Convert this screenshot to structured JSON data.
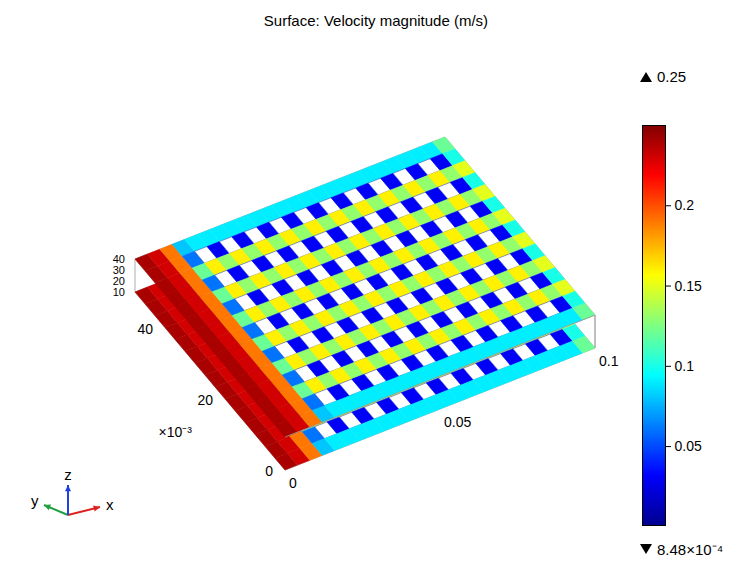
{
  "chart_data": {
    "type": "surface",
    "title": "Surface: Velocity magnitude (m/s)",
    "xlim": [
      0,
      0.1
    ],
    "xticks": [
      0,
      0.05,
      0.1
    ],
    "ylim": [
      0,
      50
    ],
    "yticks": [
      0,
      20,
      40
    ],
    "y_multiplier": "×10⁻³",
    "zlim": [
      10,
      40
    ],
    "zticks": [
      10,
      20,
      30,
      40
    ],
    "triad": [
      "x",
      "y",
      "z"
    ],
    "colorbar": {
      "min": {
        "value": 0.000848,
        "label": "8.48×10⁻⁴"
      },
      "max": 0.25,
      "ticks": [
        0.05,
        0.1,
        0.15,
        0.2
      ]
    },
    "field": {
      "values": [
        [
          0.24,
          0.23,
          0.19,
          0.08,
          0.09,
          0.09,
          0.09,
          0.09,
          0.09,
          0.09,
          0.09,
          0.09,
          0.09,
          0.09,
          0.09,
          0.09,
          0.09,
          0.09,
          0.09,
          0.09,
          0.09,
          0.09,
          0.09,
          0.09,
          0.12
        ],
        [
          0.24,
          0.23,
          0.19,
          0.06,
          null,
          0.03,
          null,
          0.03,
          null,
          0.03,
          null,
          0.03,
          null,
          0.03,
          null,
          0.03,
          null,
          0.03,
          null,
          0.03,
          null,
          0.03,
          null,
          0.03,
          0.1
        ],
        [
          0.24,
          0.23,
          0.19,
          0.12,
          0.16,
          0.13,
          0.16,
          0.13,
          0.16,
          0.13,
          0.16,
          0.13,
          0.16,
          0.13,
          0.16,
          0.13,
          0.16,
          0.13,
          0.16,
          0.13,
          0.16,
          0.13,
          0.16,
          0.13,
          0.15
        ],
        [
          0.24,
          0.23,
          0.19,
          0.06,
          null,
          0.03,
          null,
          0.03,
          null,
          0.03,
          null,
          0.03,
          null,
          0.03,
          null,
          0.03,
          null,
          0.03,
          null,
          0.03,
          null,
          0.03,
          null,
          0.03,
          0.1
        ],
        [
          0.24,
          0.23,
          0.19,
          0.12,
          0.16,
          0.13,
          0.16,
          0.13,
          0.16,
          0.13,
          0.16,
          0.13,
          0.16,
          0.13,
          0.16,
          0.13,
          0.16,
          0.13,
          0.16,
          0.13,
          0.16,
          0.13,
          0.16,
          0.13,
          0.15
        ],
        [
          0.24,
          0.23,
          0.19,
          0.06,
          null,
          0.03,
          null,
          0.03,
          null,
          0.03,
          null,
          0.03,
          null,
          0.03,
          null,
          0.03,
          null,
          0.03,
          null,
          0.03,
          null,
          0.03,
          null,
          0.03,
          0.1
        ],
        [
          0.24,
          0.23,
          0.19,
          0.12,
          0.16,
          0.13,
          0.16,
          0.13,
          0.16,
          0.13,
          0.16,
          0.13,
          0.16,
          0.13,
          0.16,
          0.13,
          0.16,
          0.13,
          0.16,
          0.13,
          0.16,
          0.13,
          0.16,
          0.13,
          0.15
        ],
        [
          0.24,
          0.23,
          0.19,
          0.06,
          null,
          0.03,
          null,
          0.03,
          null,
          0.03,
          null,
          0.03,
          null,
          0.03,
          null,
          0.03,
          null,
          0.03,
          null,
          0.03,
          null,
          0.03,
          null,
          0.03,
          0.1
        ],
        [
          0.24,
          0.23,
          0.19,
          0.12,
          0.16,
          0.13,
          0.16,
          0.13,
          0.16,
          0.13,
          0.16,
          0.13,
          0.16,
          0.13,
          0.16,
          0.13,
          0.16,
          0.13,
          0.16,
          0.13,
          0.16,
          0.13,
          0.16,
          0.13,
          0.15
        ],
        [
          0.24,
          0.23,
          0.19,
          0.06,
          null,
          0.03,
          null,
          0.03,
          null,
          0.03,
          null,
          0.03,
          null,
          0.03,
          null,
          0.03,
          null,
          0.03,
          null,
          0.03,
          null,
          0.03,
          null,
          0.03,
          0.1
        ],
        [
          0.24,
          0.23,
          0.19,
          0.12,
          0.16,
          0.13,
          0.16,
          0.13,
          0.16,
          0.13,
          0.16,
          0.13,
          0.16,
          0.13,
          0.16,
          0.13,
          0.16,
          0.13,
          0.16,
          0.13,
          0.16,
          0.13,
          0.16,
          0.13,
          0.15
        ],
        [
          0.24,
          0.23,
          0.19,
          0.06,
          null,
          0.03,
          null,
          0.03,
          null,
          0.03,
          null,
          0.03,
          null,
          0.03,
          null,
          0.03,
          null,
          0.03,
          null,
          0.03,
          null,
          0.03,
          null,
          0.03,
          0.1
        ],
        [
          0.24,
          0.23,
          0.19,
          0.12,
          0.16,
          0.13,
          0.16,
          0.13,
          0.16,
          0.13,
          0.16,
          0.13,
          0.16,
          0.13,
          0.16,
          0.13,
          0.16,
          0.13,
          0.16,
          0.13,
          0.16,
          0.13,
          0.16,
          0.13,
          0.15
        ],
        [
          0.24,
          0.23,
          0.19,
          0.06,
          null,
          0.03,
          null,
          0.03,
          null,
          0.03,
          null,
          0.03,
          null,
          0.03,
          null,
          0.03,
          null,
          0.03,
          null,
          0.03,
          null,
          0.03,
          null,
          0.03,
          0.1
        ],
        [
          0.24,
          0.23,
          0.19,
          0.08,
          0.09,
          0.09,
          0.09,
          0.09,
          0.09,
          0.09,
          0.09,
          0.09,
          0.09,
          0.09,
          0.09,
          0.09,
          0.09,
          0.09,
          0.09,
          0.09,
          0.09,
          0.09,
          0.09,
          0.09,
          0.12
        ]
      ]
    }
  }
}
